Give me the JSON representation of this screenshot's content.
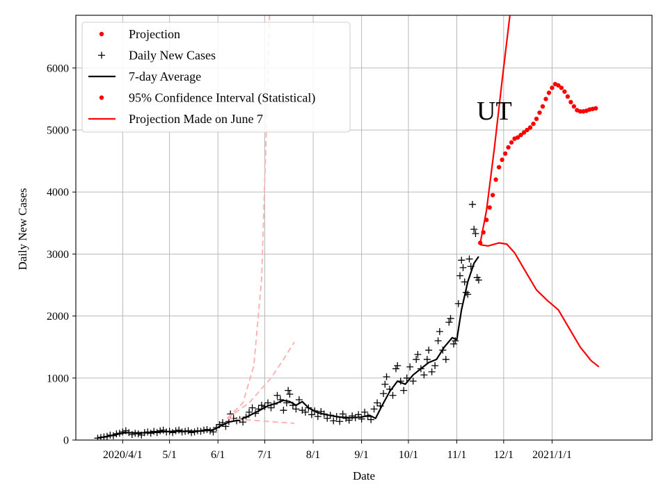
{
  "chart_data": {
    "type": "line",
    "title": "",
    "xlabel": "Date",
    "ylabel": "Daily New Cases",
    "annotation": "UT",
    "ylim": [
      0,
      6850
    ],
    "xlim": [
      "2020-03-02",
      "2021-03-06"
    ],
    "grid": true,
    "legend_placement": "top-left",
    "yticks": [
      0,
      1000,
      2000,
      3000,
      4000,
      5000,
      6000
    ],
    "xticks": [
      {
        "date": "2020-04-01",
        "label": "2020/4/1"
      },
      {
        "date": "2020-05-01",
        "label": "5/1"
      },
      {
        "date": "2020-06-01",
        "label": "6/1"
      },
      {
        "date": "2020-07-01",
        "label": "7/1"
      },
      {
        "date": "2020-08-01",
        "label": "8/1"
      },
      {
        "date": "2020-09-01",
        "label": "9/1"
      },
      {
        "date": "2020-10-01",
        "label": "10/1"
      },
      {
        "date": "2020-11-01",
        "label": "11/1"
      },
      {
        "date": "2020-12-01",
        "label": "12/1"
      },
      {
        "date": "2021-01-01",
        "label": "2021/1/1"
      }
    ],
    "legend": [
      {
        "label": "Projection",
        "marker": "dot",
        "color": "#ff0000"
      },
      {
        "label": "Daily New Cases",
        "marker": "plus",
        "color": "#000000"
      },
      {
        "label": "7-day Average",
        "marker": "line",
        "color": "#000000"
      },
      {
        "label": "95% Confidence Interval (Statistical)",
        "marker": "dot",
        "color": "#ff0000"
      },
      {
        "label": "Projection Made on June 7",
        "marker": "line",
        "color": "#ff0000"
      }
    ],
    "series": [
      {
        "name": "Daily New Cases",
        "style": "plus",
        "color": "#000000",
        "points": [
          [
            "2020-03-16",
            30
          ],
          [
            "2020-03-18",
            40
          ],
          [
            "2020-03-20",
            50
          ],
          [
            "2020-03-22",
            60
          ],
          [
            "2020-03-24",
            80
          ],
          [
            "2020-03-26",
            70
          ],
          [
            "2020-03-28",
            100
          ],
          [
            "2020-03-30",
            110
          ],
          [
            "2020-04-01",
            130
          ],
          [
            "2020-04-03",
            150
          ],
          [
            "2020-04-05",
            120
          ],
          [
            "2020-04-07",
            90
          ],
          [
            "2020-04-09",
            110
          ],
          [
            "2020-04-11",
            100
          ],
          [
            "2020-04-13",
            80
          ],
          [
            "2020-04-15",
            120
          ],
          [
            "2020-04-17",
            130
          ],
          [
            "2020-04-19",
            110
          ],
          [
            "2020-04-21",
            140
          ],
          [
            "2020-04-23",
            120
          ],
          [
            "2020-04-25",
            150
          ],
          [
            "2020-04-27",
            160
          ],
          [
            "2020-04-29",
            130
          ],
          [
            "2020-05-01",
            140
          ],
          [
            "2020-05-03",
            120
          ],
          [
            "2020-05-05",
            150
          ],
          [
            "2020-05-07",
            160
          ],
          [
            "2020-05-09",
            130
          ],
          [
            "2020-05-11",
            140
          ],
          [
            "2020-05-13",
            150
          ],
          [
            "2020-05-15",
            120
          ],
          [
            "2020-05-17",
            130
          ],
          [
            "2020-05-19",
            150
          ],
          [
            "2020-05-21",
            140
          ],
          [
            "2020-05-23",
            160
          ],
          [
            "2020-05-25",
            170
          ],
          [
            "2020-05-27",
            150
          ],
          [
            "2020-05-29",
            130
          ],
          [
            "2020-05-31",
            200
          ],
          [
            "2020-06-02",
            250
          ],
          [
            "2020-06-04",
            280
          ],
          [
            "2020-06-06",
            220
          ],
          [
            "2020-06-08",
            300
          ],
          [
            "2020-06-09",
            420
          ],
          [
            "2020-06-11",
            350
          ],
          [
            "2020-06-13",
            310
          ],
          [
            "2020-06-15",
            330
          ],
          [
            "2020-06-17",
            290
          ],
          [
            "2020-06-19",
            370
          ],
          [
            "2020-06-21",
            450
          ],
          [
            "2020-06-23",
            520
          ],
          [
            "2020-06-25",
            430
          ],
          [
            "2020-06-27",
            500
          ],
          [
            "2020-06-29",
            560
          ],
          [
            "2020-07-01",
            540
          ],
          [
            "2020-07-03",
            600
          ],
          [
            "2020-07-05",
            520
          ],
          [
            "2020-07-07",
            580
          ],
          [
            "2020-07-09",
            720
          ],
          [
            "2020-07-11",
            650
          ],
          [
            "2020-07-13",
            480
          ],
          [
            "2020-07-15",
            600
          ],
          [
            "2020-07-16",
            800
          ],
          [
            "2020-07-17",
            740
          ],
          [
            "2020-07-19",
            560
          ],
          [
            "2020-07-21",
            500
          ],
          [
            "2020-07-23",
            650
          ],
          [
            "2020-07-25",
            480
          ],
          [
            "2020-07-27",
            450
          ],
          [
            "2020-07-29",
            520
          ],
          [
            "2020-07-31",
            410
          ],
          [
            "2020-08-02",
            470
          ],
          [
            "2020-08-04",
            380
          ],
          [
            "2020-08-06",
            460
          ],
          [
            "2020-08-08",
            420
          ],
          [
            "2020-08-10",
            350
          ],
          [
            "2020-08-12",
            400
          ],
          [
            "2020-08-14",
            310
          ],
          [
            "2020-08-16",
            380
          ],
          [
            "2020-08-18",
            300
          ],
          [
            "2020-08-20",
            420
          ],
          [
            "2020-08-22",
            350
          ],
          [
            "2020-08-24",
            320
          ],
          [
            "2020-08-26",
            390
          ],
          [
            "2020-08-28",
            360
          ],
          [
            "2020-08-30",
            410
          ],
          [
            "2020-09-01",
            340
          ],
          [
            "2020-09-03",
            450
          ],
          [
            "2020-09-05",
            380
          ],
          [
            "2020-09-07",
            330
          ],
          [
            "2020-09-09",
            500
          ],
          [
            "2020-09-11",
            600
          ],
          [
            "2020-09-13",
            550
          ],
          [
            "2020-09-15",
            750
          ],
          [
            "2020-09-16",
            900
          ],
          [
            "2020-09-17",
            1020
          ],
          [
            "2020-09-19",
            820
          ],
          [
            "2020-09-21",
            720
          ],
          [
            "2020-09-23",
            1150
          ],
          [
            "2020-09-24",
            1200
          ],
          [
            "2020-09-26",
            950
          ],
          [
            "2020-09-28",
            800
          ],
          [
            "2020-09-30",
            1000
          ],
          [
            "2020-10-02",
            1180
          ],
          [
            "2020-10-04",
            950
          ],
          [
            "2020-10-06",
            1300
          ],
          [
            "2020-10-07",
            1380
          ],
          [
            "2020-10-09",
            1150
          ],
          [
            "2020-10-11",
            1050
          ],
          [
            "2020-10-13",
            1300
          ],
          [
            "2020-10-14",
            1450
          ],
          [
            "2020-10-16",
            1100
          ],
          [
            "2020-10-18",
            1200
          ],
          [
            "2020-10-20",
            1600
          ],
          [
            "2020-10-21",
            1750
          ],
          [
            "2020-10-23",
            1450
          ],
          [
            "2020-10-25",
            1300
          ],
          [
            "2020-10-27",
            1900
          ],
          [
            "2020-10-28",
            1960
          ],
          [
            "2020-10-30",
            1550
          ],
          [
            "2020-10-31",
            1600
          ],
          [
            "2020-11-02",
            2200
          ],
          [
            "2020-11-03",
            2650
          ],
          [
            "2020-11-04",
            2900
          ],
          [
            "2020-11-05",
            2780
          ],
          [
            "2020-11-06",
            2550
          ],
          [
            "2020-11-07",
            2380
          ],
          [
            "2020-11-08",
            2350
          ],
          [
            "2020-11-09",
            2920
          ],
          [
            "2020-11-10",
            2800
          ],
          [
            "2020-11-11",
            3800
          ],
          [
            "2020-11-12",
            3400
          ],
          [
            "2020-11-13",
            3330
          ],
          [
            "2020-11-14",
            2620
          ],
          [
            "2020-11-15",
            2580
          ]
        ]
      },
      {
        "name": "7-day Average",
        "style": "line",
        "color": "#000000",
        "points": [
          [
            "2020-03-16",
            35
          ],
          [
            "2020-03-22",
            55
          ],
          [
            "2020-03-28",
            90
          ],
          [
            "2020-04-03",
            120
          ],
          [
            "2020-04-10",
            115
          ],
          [
            "2020-04-17",
            118
          ],
          [
            "2020-04-24",
            130
          ],
          [
            "2020-05-01",
            138
          ],
          [
            "2020-05-08",
            142
          ],
          [
            "2020-05-15",
            140
          ],
          [
            "2020-05-22",
            148
          ],
          [
            "2020-05-29",
            165
          ],
          [
            "2020-06-03",
            230
          ],
          [
            "2020-06-08",
            290
          ],
          [
            "2020-06-14",
            320
          ],
          [
            "2020-06-20",
            380
          ],
          [
            "2020-06-27",
            470
          ],
          [
            "2020-07-03",
            550
          ],
          [
            "2020-07-09",
            600
          ],
          [
            "2020-07-13",
            640
          ],
          [
            "2020-07-17",
            620
          ],
          [
            "2020-07-21",
            560
          ],
          [
            "2020-07-25",
            620
          ],
          [
            "2020-07-29",
            520
          ],
          [
            "2020-08-04",
            440
          ],
          [
            "2020-08-11",
            400
          ],
          [
            "2020-08-18",
            370
          ],
          [
            "2020-08-25",
            360
          ],
          [
            "2020-09-01",
            370
          ],
          [
            "2020-09-06",
            400
          ],
          [
            "2020-09-10",
            350
          ],
          [
            "2020-09-14",
            550
          ],
          [
            "2020-09-19",
            780
          ],
          [
            "2020-09-24",
            950
          ],
          [
            "2020-09-29",
            900
          ],
          [
            "2020-10-04",
            1050
          ],
          [
            "2020-10-09",
            1150
          ],
          [
            "2020-10-14",
            1250
          ],
          [
            "2020-10-19",
            1300
          ],
          [
            "2020-10-24",
            1500
          ],
          [
            "2020-10-29",
            1650
          ],
          [
            "2020-11-01",
            1620
          ],
          [
            "2020-11-04",
            2100
          ],
          [
            "2020-11-08",
            2550
          ],
          [
            "2020-11-12",
            2850
          ],
          [
            "2020-11-15",
            2960
          ]
        ]
      },
      {
        "name": "Projection",
        "style": "dots",
        "color": "#ff0000",
        "points": [
          [
            "2020-11-16",
            3180
          ],
          [
            "2020-11-18",
            3350
          ],
          [
            "2020-11-20",
            3550
          ],
          [
            "2020-11-22",
            3750
          ],
          [
            "2020-11-24",
            3950
          ],
          [
            "2020-11-26",
            4200
          ],
          [
            "2020-11-28",
            4400
          ],
          [
            "2020-11-30",
            4520
          ],
          [
            "2020-12-02",
            4620
          ],
          [
            "2020-12-04",
            4720
          ],
          [
            "2020-12-06",
            4800
          ],
          [
            "2020-12-08",
            4860
          ],
          [
            "2020-12-10",
            4880
          ],
          [
            "2020-12-12",
            4920
          ],
          [
            "2020-12-14",
            4960
          ],
          [
            "2020-12-16",
            5000
          ],
          [
            "2020-12-18",
            5040
          ],
          [
            "2020-12-20",
            5100
          ],
          [
            "2020-12-22",
            5180
          ],
          [
            "2020-12-24",
            5280
          ],
          [
            "2020-12-26",
            5380
          ],
          [
            "2020-12-28",
            5500
          ],
          [
            "2020-12-30",
            5600
          ],
          [
            "2021-01-01",
            5680
          ],
          [
            "2021-01-03",
            5740
          ],
          [
            "2021-01-05",
            5720
          ],
          [
            "2021-01-07",
            5680
          ],
          [
            "2021-01-09",
            5620
          ],
          [
            "2021-01-11",
            5540
          ],
          [
            "2021-01-13",
            5450
          ],
          [
            "2021-01-15",
            5380
          ],
          [
            "2021-01-17",
            5320
          ],
          [
            "2021-01-19",
            5300
          ],
          [
            "2021-01-21",
            5300
          ],
          [
            "2021-01-23",
            5310
          ],
          [
            "2021-01-25",
            5330
          ],
          [
            "2021-01-27",
            5340
          ],
          [
            "2021-01-29",
            5350
          ]
        ]
      },
      {
        "name": "95% Confidence Interval (Statistical)",
        "style": "line",
        "color": "#ff0000",
        "points": [
          [
            "2020-11-16",
            3180
          ],
          [
            "2020-11-20",
            3700
          ],
          [
            "2020-11-25",
            4700
          ],
          [
            "2020-11-30",
            5800
          ],
          [
            "2020-12-05",
            6850
          ]
        ]
      },
      {
        "name": "95% Confidence Interval (Statistical)",
        "style": "line",
        "color": "#ff0000",
        "points": [
          [
            "2020-11-16",
            3150
          ],
          [
            "2020-11-21",
            3130
          ],
          [
            "2020-11-28",
            3180
          ],
          [
            "2020-12-03",
            3160
          ],
          [
            "2020-12-08",
            3020
          ],
          [
            "2020-12-15",
            2720
          ],
          [
            "2020-12-22",
            2420
          ],
          [
            "2020-12-29",
            2250
          ],
          [
            "2021-01-05",
            2100
          ],
          [
            "2021-01-12",
            1800
          ],
          [
            "2021-01-19",
            1500
          ],
          [
            "2021-01-26",
            1280
          ],
          [
            "2021-01-31",
            1180
          ]
        ]
      },
      {
        "name": "Projection Made on June 7",
        "style": "dashed",
        "color": "#ffb3b3",
        "points": [
          [
            "2020-06-07",
            350
          ],
          [
            "2020-06-17",
            600
          ],
          [
            "2020-06-24",
            1200
          ],
          [
            "2020-06-29",
            2600
          ],
          [
            "2020-07-02",
            5000
          ],
          [
            "2020-07-04",
            6850
          ]
        ]
      },
      {
        "name": "Projection Made on June 7",
        "style": "dashed",
        "color": "#ffb3b3",
        "points": [
          [
            "2020-06-07",
            350
          ],
          [
            "2020-06-21",
            600
          ],
          [
            "2020-07-05",
            1000
          ],
          [
            "2020-07-13",
            1300
          ],
          [
            "2020-07-20",
            1580
          ]
        ]
      },
      {
        "name": "Projection Made on June 7",
        "style": "dashed",
        "color": "#ffb3b3",
        "points": [
          [
            "2020-06-07",
            350
          ],
          [
            "2020-06-27",
            310
          ],
          [
            "2020-07-20",
            270
          ]
        ]
      }
    ]
  }
}
